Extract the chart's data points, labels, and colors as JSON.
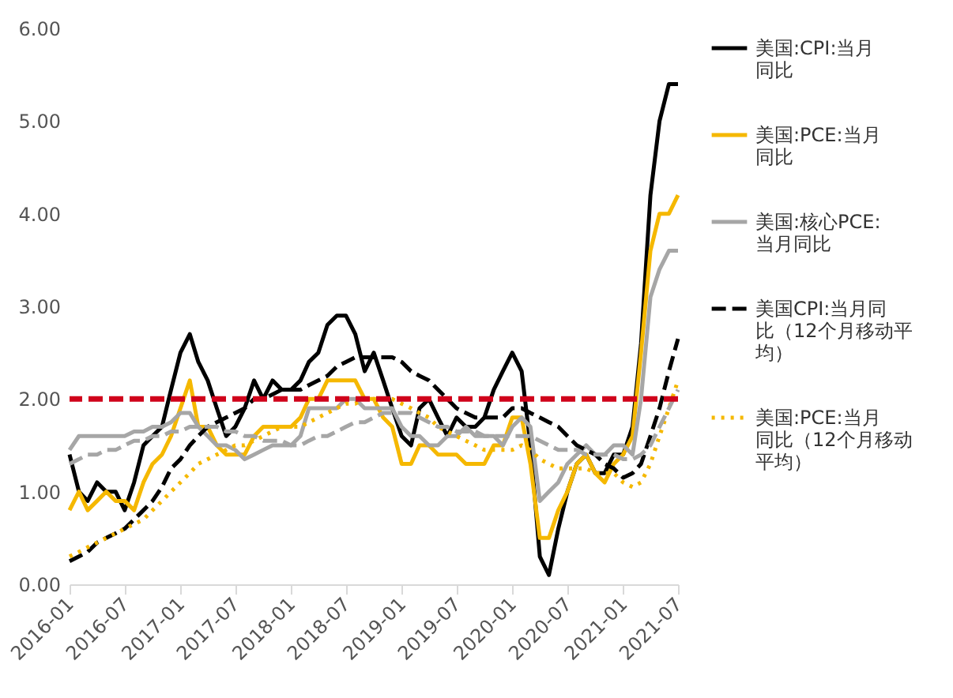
{
  "chart_data": {
    "type": "line",
    "x": [
      "2016-01",
      "2016-02",
      "2016-03",
      "2016-04",
      "2016-05",
      "2016-06",
      "2016-07",
      "2016-08",
      "2016-09",
      "2016-10",
      "2016-11",
      "2016-12",
      "2017-01",
      "2017-02",
      "2017-03",
      "2017-04",
      "2017-05",
      "2017-06",
      "2017-07",
      "2017-08",
      "2017-09",
      "2017-10",
      "2017-11",
      "2017-12",
      "2018-01",
      "2018-02",
      "2018-03",
      "2018-04",
      "2018-05",
      "2018-06",
      "2018-07",
      "2018-08",
      "2018-09",
      "2018-10",
      "2018-11",
      "2018-12",
      "2019-01",
      "2019-02",
      "2019-03",
      "2019-04",
      "2019-05",
      "2019-06",
      "2019-07",
      "2019-08",
      "2019-09",
      "2019-10",
      "2019-11",
      "2019-12",
      "2020-01",
      "2020-02",
      "2020-03",
      "2020-04",
      "2020-05",
      "2020-06",
      "2020-07",
      "2020-08",
      "2020-09",
      "2020-10",
      "2020-11",
      "2020-12",
      "2021-01",
      "2021-02",
      "2021-03",
      "2021-04",
      "2021-05",
      "2021-06",
      "2021-07"
    ],
    "series": [
      {
        "name": "美国:CPI:当月同比",
        "color": "#000000",
        "line_style": "solid",
        "values": [
          1.4,
          1.0,
          0.9,
          1.1,
          1.0,
          1.0,
          0.8,
          1.1,
          1.5,
          1.6,
          1.7,
          2.1,
          2.5,
          2.7,
          2.4,
          2.2,
          1.9,
          1.6,
          1.7,
          1.9,
          2.2,
          2.0,
          2.2,
          2.1,
          2.1,
          2.2,
          2.4,
          2.5,
          2.8,
          2.9,
          2.9,
          2.7,
          2.3,
          2.5,
          2.2,
          1.9,
          1.6,
          1.5,
          1.9,
          2.0,
          1.8,
          1.6,
          1.8,
          1.7,
          1.7,
          1.8,
          2.1,
          2.3,
          2.5,
          2.3,
          1.5,
          0.3,
          0.1,
          0.6,
          1.0,
          1.3,
          1.4,
          1.2,
          1.2,
          1.4,
          1.4,
          1.7,
          2.6,
          4.2,
          5.0,
          5.4,
          5.4
        ]
      },
      {
        "name": "美国:PCE:当月同比",
        "color": "#f5b800",
        "line_style": "solid",
        "values": [
          0.8,
          1.0,
          0.8,
          0.9,
          1.0,
          0.9,
          0.9,
          0.8,
          1.1,
          1.3,
          1.4,
          1.6,
          1.9,
          2.2,
          1.7,
          1.7,
          1.5,
          1.4,
          1.4,
          1.4,
          1.6,
          1.7,
          1.7,
          1.7,
          1.7,
          1.8,
          2.0,
          2.0,
          2.2,
          2.2,
          2.2,
          2.2,
          2.0,
          2.0,
          1.8,
          1.7,
          1.3,
          1.3,
          1.5,
          1.5,
          1.4,
          1.4,
          1.4,
          1.3,
          1.3,
          1.3,
          1.5,
          1.5,
          1.8,
          1.8,
          1.3,
          0.5,
          0.5,
          0.8,
          1.0,
          1.3,
          1.4,
          1.2,
          1.1,
          1.3,
          1.4,
          1.6,
          2.5,
          3.6,
          4.0,
          4.0,
          4.2
        ]
      },
      {
        "name": "美国:核心PCE:当月同比",
        "color": "#a6a6a6",
        "line_style": "solid",
        "values": [
          1.45,
          1.6,
          1.6,
          1.6,
          1.6,
          1.6,
          1.6,
          1.65,
          1.65,
          1.7,
          1.7,
          1.75,
          1.85,
          1.85,
          1.7,
          1.6,
          1.5,
          1.5,
          1.45,
          1.35,
          1.4,
          1.45,
          1.5,
          1.5,
          1.5,
          1.6,
          1.9,
          1.9,
          1.9,
          1.9,
          2.0,
          2.0,
          1.9,
          1.9,
          1.9,
          1.9,
          1.7,
          1.6,
          1.6,
          1.5,
          1.5,
          1.6,
          1.6,
          1.7,
          1.6,
          1.6,
          1.6,
          1.5,
          1.7,
          1.8,
          1.7,
          0.9,
          1.0,
          1.1,
          1.3,
          1.4,
          1.5,
          1.4,
          1.4,
          1.5,
          1.5,
          1.4,
          2.0,
          3.1,
          3.4,
          3.6,
          3.6
        ]
      },
      {
        "name": "美国CPI:当月同比（12个月移动平均）",
        "color": "#000000",
        "line_style": "dashed",
        "values": [
          0.25,
          0.3,
          0.35,
          0.45,
          0.5,
          0.55,
          0.6,
          0.7,
          0.8,
          0.9,
          1.05,
          1.25,
          1.35,
          1.5,
          1.6,
          1.7,
          1.75,
          1.8,
          1.85,
          1.9,
          2.0,
          2.0,
          2.05,
          2.1,
          2.1,
          2.1,
          2.15,
          2.2,
          2.25,
          2.35,
          2.4,
          2.45,
          2.45,
          2.45,
          2.45,
          2.45,
          2.4,
          2.3,
          2.25,
          2.2,
          2.1,
          2.0,
          1.9,
          1.85,
          1.8,
          1.8,
          1.8,
          1.8,
          1.9,
          1.9,
          1.85,
          1.8,
          1.75,
          1.7,
          1.6,
          1.5,
          1.45,
          1.4,
          1.3,
          1.25,
          1.15,
          1.2,
          1.3,
          1.6,
          1.9,
          2.3,
          2.65
        ]
      },
      {
        "name": "美国:PCE:当月同比（12个月移动平均）",
        "color": "#f5b800",
        "line_style": "dotted",
        "values": [
          0.3,
          0.35,
          0.4,
          0.45,
          0.5,
          0.55,
          0.6,
          0.65,
          0.7,
          0.8,
          0.9,
          1.0,
          1.1,
          1.2,
          1.3,
          1.35,
          1.4,
          1.45,
          1.5,
          1.5,
          1.55,
          1.6,
          1.65,
          1.7,
          1.7,
          1.7,
          1.75,
          1.8,
          1.85,
          1.9,
          1.95,
          1.95,
          2.0,
          2.0,
          2.0,
          2.0,
          1.95,
          1.9,
          1.85,
          1.8,
          1.7,
          1.65,
          1.6,
          1.55,
          1.5,
          1.45,
          1.45,
          1.45,
          1.45,
          1.5,
          1.45,
          1.35,
          1.3,
          1.25,
          1.25,
          1.25,
          1.25,
          1.2,
          1.2,
          1.2,
          1.1,
          1.05,
          1.1,
          1.3,
          1.6,
          1.9,
          2.2
        ]
      },
      {
        "color": "#a6a6a6",
        "line_style": "dashed",
        "values": [
          1.3,
          1.35,
          1.4,
          1.4,
          1.45,
          1.45,
          1.5,
          1.55,
          1.55,
          1.6,
          1.6,
          1.65,
          1.65,
          1.7,
          1.7,
          1.7,
          1.7,
          1.65,
          1.65,
          1.6,
          1.6,
          1.55,
          1.55,
          1.55,
          1.5,
          1.5,
          1.55,
          1.6,
          1.6,
          1.65,
          1.7,
          1.75,
          1.75,
          1.8,
          1.85,
          1.85,
          1.85,
          1.85,
          1.8,
          1.75,
          1.7,
          1.7,
          1.65,
          1.65,
          1.65,
          1.6,
          1.6,
          1.6,
          1.6,
          1.6,
          1.6,
          1.55,
          1.5,
          1.45,
          1.45,
          1.45,
          1.4,
          1.4,
          1.4,
          1.4,
          1.35,
          1.35,
          1.4,
          1.5,
          1.7,
          1.9,
          2.1
        ]
      }
    ],
    "xlim": [
      "2016-01",
      "2021-07"
    ],
    "xticks": [
      "2016-01",
      "2016-07",
      "2017-01",
      "2017-07",
      "2018-01",
      "2018-07",
      "2019-01",
      "2019-07",
      "2020-01",
      "2020-07",
      "2021-01",
      "2021-07"
    ],
    "ylim": [
      0,
      6
    ],
    "yticks": [
      {
        "value": 0,
        "label": "0.00"
      },
      {
        "value": 1,
        "label": "1.00"
      },
      {
        "value": 2,
        "label": "2.00"
      },
      {
        "value": 3,
        "label": "3.00"
      },
      {
        "value": 4,
        "label": "4.00"
      },
      {
        "value": 5,
        "label": "5.00"
      },
      {
        "value": 6,
        "label": "6.00"
      }
    ],
    "ref_lines": [
      {
        "axis": "y",
        "value": 2,
        "color": "#d0021b",
        "line_style": "dashed"
      }
    ],
    "grid": false,
    "legend": "right"
  }
}
